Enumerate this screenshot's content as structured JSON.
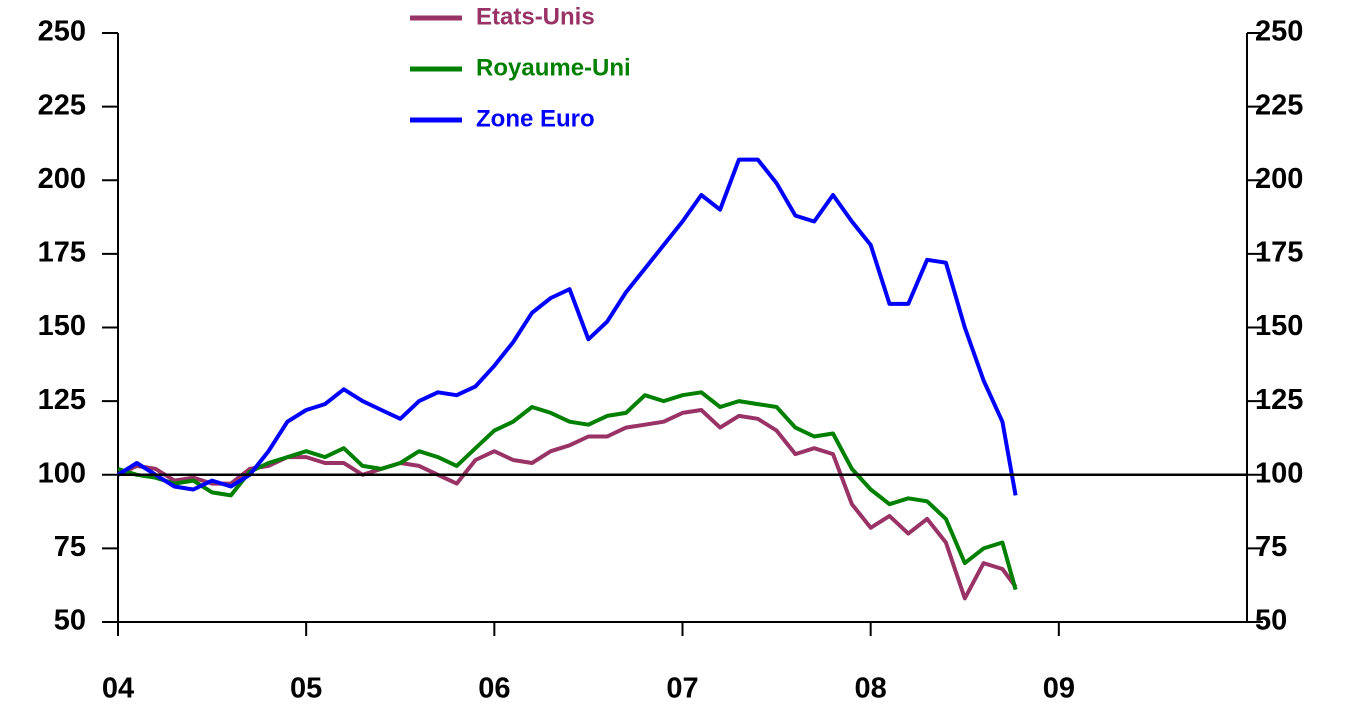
{
  "chart_data": {
    "type": "line",
    "x": [
      4.0,
      4.1,
      4.2,
      4.3,
      4.4,
      4.5,
      4.6,
      4.7,
      4.8,
      4.9,
      5.0,
      5.1,
      5.2,
      5.3,
      5.4,
      5.5,
      5.6,
      5.7,
      5.8,
      5.9,
      6.0,
      6.1,
      6.2,
      6.3,
      6.4,
      6.5,
      6.6,
      6.7,
      6.8,
      6.9,
      7.0,
      7.1,
      7.2,
      7.3,
      7.4,
      7.5,
      7.6,
      7.7,
      7.8,
      7.9,
      8.0,
      8.1,
      8.2,
      8.3,
      8.4,
      8.5,
      8.6,
      8.7,
      8.77
    ],
    "series": [
      {
        "name": "Etats-Unis",
        "color": "#993366",
        "values": [
          100,
          103,
          102,
          98,
          99,
          97,
          97,
          102,
          103,
          106,
          106,
          104,
          104,
          100,
          102,
          104,
          103,
          100,
          97,
          105,
          108,
          105,
          104,
          108,
          110,
          113,
          113,
          116,
          117,
          118,
          121,
          122,
          116,
          120,
          119,
          115,
          107,
          109,
          107,
          90,
          82,
          86,
          80,
          85,
          77,
          58,
          70,
          68,
          62
        ]
      },
      {
        "name": "Royaume-Uni",
        "color": "#008000",
        "values": [
          102,
          100,
          99,
          97,
          98,
          94,
          93,
          101,
          104,
          106,
          108,
          106,
          109,
          103,
          102,
          104,
          108,
          106,
          103,
          109,
          115,
          118,
          123,
          121,
          118,
          117,
          120,
          121,
          127,
          125,
          127,
          128,
          123,
          125,
          124,
          123,
          116,
          113,
          114,
          102,
          95,
          90,
          92,
          91,
          85,
          70,
          75,
          77,
          61
        ]
      },
      {
        "name": "Zone Euro",
        "color": "#0000ff",
        "values": [
          100,
          104,
          100,
          96,
          95,
          98,
          96,
          100,
          108,
          118,
          122,
          124,
          129,
          125,
          122,
          119,
          125,
          128,
          127,
          130,
          137,
          145,
          155,
          160,
          163,
          146,
          152,
          162,
          170,
          178,
          186,
          195,
          190,
          207,
          207,
          199,
          188,
          186,
          195,
          186,
          178,
          158,
          158,
          173,
          172,
          150,
          132,
          118,
          93
        ]
      }
    ],
    "xlim": [
      4,
      10
    ],
    "xticks": [
      {
        "value": 4,
        "label": "04"
      },
      {
        "value": 5,
        "label": "05"
      },
      {
        "value": 6,
        "label": "06"
      },
      {
        "value": 7,
        "label": "07"
      },
      {
        "value": 8,
        "label": "08"
      },
      {
        "value": 9,
        "label": "09"
      }
    ],
    "ylim": [
      50,
      250
    ],
    "yticks": [
      50,
      75,
      100,
      125,
      150,
      175,
      200,
      225,
      250
    ],
    "y2lim": [
      50,
      250
    ],
    "y2ticks": [
      50,
      75,
      100,
      125,
      150,
      175,
      200,
      225,
      250
    ],
    "hline": 100,
    "legend": "top"
  }
}
